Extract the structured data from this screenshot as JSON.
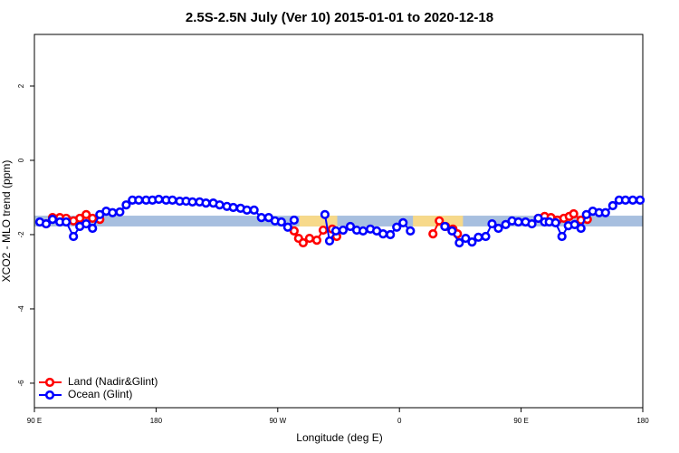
{
  "chart_data": {
    "type": "line",
    "title": "2.5S-2.5N July (Ver 10)   2015-01-01 to 2020-12-18",
    "x_label": "Longitude (deg E)",
    "y_label": "XCO2 - MLO trend (ppm)",
    "xlim": [
      90,
      540
    ],
    "ylim": [
      -6.66,
      3.39
    ],
    "xticks": [
      {
        "value": 90,
        "label": "90 E"
      },
      180,
      {
        "value": 270,
        "label": "90 W"
      },
      {
        "value": 360,
        "label": "0"
      },
      {
        "value": 450,
        "label": "90 E"
      },
      {
        "value": 540,
        "label": "180"
      }
    ],
    "yticks": [
      -6,
      -4,
      -2,
      0,
      2
    ],
    "band": {
      "lower": -1.78,
      "upper": -1.49,
      "color": "#a7bfdf"
    },
    "land_spans": {
      "color": "#f7d98a",
      "ranges": [
        [
          286,
          314
        ],
        [
          370,
          407
        ]
      ]
    },
    "legend": "bottom-left",
    "series": [
      {
        "name": "Land (Nadir&Glint)",
        "color": "#ff0000",
        "x": [
          98.7,
          103.4,
          108.8,
          113.5,
          118.9,
          123.6,
          128.3,
          133.0,
          138.4,
          null,
          282.1,
          285.4,
          288.8,
          293.5,
          298.9,
          303.6,
          310.3,
          313.6,
          null,
          384.8,
          389.5,
          394.2,
          399.6,
          402.9,
          null,
          462.7,
          467.4,
          472.1,
          476.8,
          481.6,
          485.6,
          488.9,
          494.3,
          499.0
        ],
        "values": [
          -1.71,
          -1.54,
          -1.54,
          -1.56,
          -1.63,
          -1.56,
          -1.46,
          -1.56,
          -1.59,
          null,
          -1.9,
          -2.1,
          -2.22,
          -2.1,
          -2.15,
          -1.88,
          -1.85,
          -2.05,
          null,
          -1.98,
          -1.63,
          -1.78,
          -1.85,
          -1.98,
          null,
          -1.56,
          -1.51,
          -1.54,
          -1.61,
          -1.56,
          -1.51,
          -1.44,
          -1.61,
          -1.59
        ]
      },
      {
        "name": "Ocean (Glint)",
        "color": "#0000ff",
        "x": [
          94.0,
          98.7,
          103.4,
          108.8,
          113.5,
          118.9,
          123.6,
          128.3,
          133.0,
          138.4,
          143.1,
          147.8,
          153.2,
          157.9,
          162.5,
          167.2,
          172.6,
          177.3,
          182.0,
          187.4,
          192.1,
          197.5,
          202.2,
          206.9,
          212.2,
          216.9,
          222.3,
          227.0,
          232.4,
          237.1,
          242.5,
          247.2,
          252.5,
          257.9,
          263.3,
          268.0,
          272.7,
          277.4,
          282.1,
          null,
          304.9,
          308.3,
          313.0,
          318.3,
          323.7,
          328.4,
          333.1,
          338.5,
          343.2,
          347.9,
          353.3,
          358.0,
          362.7,
          368.1,
          null,
          393.6,
          398.9,
          404.3,
          409.0,
          413.7,
          418.4,
          423.8,
          428.5,
          433.2,
          438.6,
          443.3,
          448.0,
          453.3,
          458.0,
          462.7,
          467.4,
          470.8,
          475.5,
          480.2,
          484.9,
          489.6,
          494.3,
          498.3,
          503.0,
          507.7,
          512.4,
          517.8,
          522.5,
          527.2,
          532.6,
          538.0
        ],
        "values": [
          -1.66,
          -1.71,
          -1.59,
          -1.66,
          -1.66,
          -2.05,
          -1.78,
          -1.71,
          -1.83,
          -1.46,
          -1.37,
          -1.41,
          -1.39,
          -1.2,
          -1.07,
          -1.07,
          -1.07,
          -1.07,
          -1.05,
          -1.07,
          -1.07,
          -1.1,
          -1.1,
          -1.12,
          -1.12,
          -1.15,
          -1.15,
          -1.2,
          -1.24,
          -1.27,
          -1.29,
          -1.34,
          -1.34,
          -1.54,
          -1.54,
          -1.63,
          -1.66,
          -1.8,
          -1.61,
          null,
          -1.46,
          -2.17,
          -1.9,
          -1.88,
          -1.78,
          -1.88,
          -1.9,
          -1.85,
          -1.9,
          -1.98,
          -2.0,
          -1.8,
          -1.68,
          -1.9,
          null,
          -1.78,
          -1.9,
          -2.22,
          -2.1,
          -2.2,
          -2.07,
          -2.05,
          -1.71,
          -1.83,
          -1.73,
          -1.63,
          -1.66,
          -1.66,
          -1.71,
          -1.56,
          -1.66,
          -1.66,
          -1.68,
          -2.05,
          -1.76,
          -1.73,
          -1.83,
          -1.46,
          -1.37,
          -1.41,
          -1.41,
          -1.22,
          -1.07,
          -1.07,
          -1.07,
          -1.07
        ]
      }
    ]
  }
}
